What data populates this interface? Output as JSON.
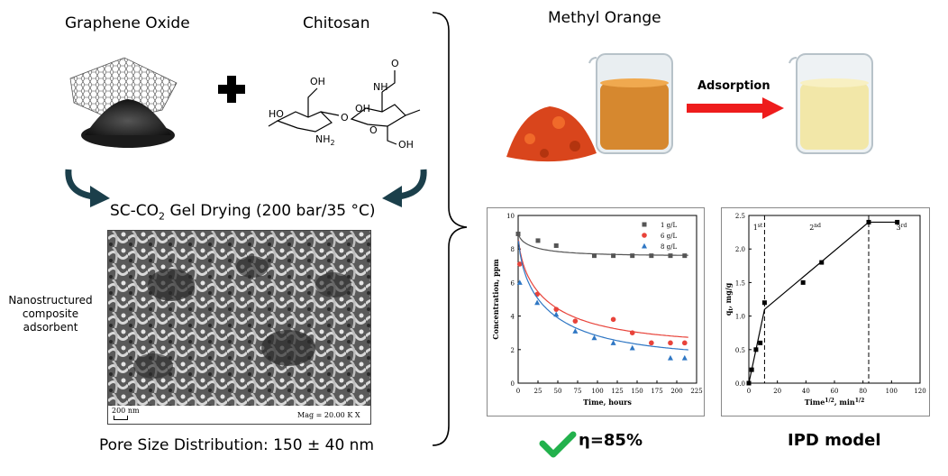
{
  "left": {
    "graphene_oxide_label": "Graphene Oxide",
    "chitosan_label": "Chitosan",
    "drying_label_prefix": "SC-CO",
    "drying_label_sub": "2",
    "drying_label_suffix": " Gel Drying (200 bar/35 °C)",
    "adsorbent_label": "Nanostructured composite adsorbent",
    "sem_scale_label": "200 nm",
    "sem_mag_label": "Mag =  20.00 K X",
    "pore_size_label": "Pore Size Distribution: 150 ± 40 nm",
    "chitosan_atoms": {
      "oh1": "OH",
      "ho": "HO",
      "nh2": "NH",
      "nh2_sub": "2",
      "oh2": "OH",
      "oh3": "OH",
      "nh": "NH",
      "o1": "O",
      "o2": "O",
      "o3": "O"
    }
  },
  "right": {
    "methyl_orange_label": "Methyl Orange",
    "adsorption_label": "Adsorption",
    "efficiency_label": "η=85%",
    "ipd_label": "IPD model"
  },
  "colors": {
    "arrow_red": "#ee1c1c",
    "check_green": "#22b14c",
    "arrow_teal": "#1b3f4b",
    "series_1": "#555555",
    "series_6": "#e8433a",
    "series_8": "#2f77c4"
  },
  "chart_data": [
    {
      "type": "scatter",
      "xlabel": "Time, hours",
      "ylabel": "Concentration, ppm",
      "xlim": [
        0,
        225
      ],
      "ylim": [
        0,
        10
      ],
      "x_ticks": [
        "0",
        "25",
        "50",
        "75",
        "100",
        "125",
        "150",
        "175",
        "200",
        "225"
      ],
      "y_ticks": [
        "0",
        "2",
        "4",
        "6",
        "8",
        "10"
      ],
      "legend": "top-right",
      "series": [
        {
          "name": "1 g/L",
          "marker": "square",
          "color": "#555555",
          "x": [
            0,
            25,
            48,
            96,
            120,
            144,
            168,
            192,
            210
          ],
          "y": [
            8.9,
            8.5,
            8.2,
            7.6,
            7.6,
            7.6,
            7.6,
            7.6,
            7.6
          ],
          "fit_asymptote": 7.6,
          "fit_start": 9.0
        },
        {
          "name": "6 g/L",
          "marker": "circle",
          "color": "#e8433a",
          "x": [
            2,
            24,
            48,
            72,
            120,
            144,
            168,
            192,
            210
          ],
          "y": [
            7.1,
            5.3,
            4.4,
            3.7,
            3.8,
            3.0,
            2.4,
            2.4,
            2.4
          ],
          "fit_asymptote": 2.3,
          "fit_start": 9.0
        },
        {
          "name": "8 g/L",
          "marker": "triangle",
          "color": "#2f77c4",
          "x": [
            2,
            24,
            48,
            72,
            96,
            120,
            144,
            192,
            210
          ],
          "y": [
            6.0,
            4.8,
            4.1,
            3.1,
            2.7,
            2.4,
            2.1,
            1.5,
            1.5
          ],
          "fit_asymptote": 1.5,
          "fit_start": 9.0
        }
      ]
    },
    {
      "type": "line",
      "xlabel": "Time",
      "xlabel_sup": "1/2",
      "xlabel_suffix": ", min",
      "ylabel": "q",
      "ylabel_sub": "t",
      "ylabel_suffix": ", mg/g",
      "xlim": [
        0,
        120
      ],
      "ylim": [
        0,
        2.5
      ],
      "x_ticks": [
        "0",
        "20",
        "40",
        "60",
        "80",
        "100",
        "120"
      ],
      "y_ticks": [
        "0.0",
        "0.5",
        "1.0",
        "1.5",
        "2.0",
        "2.5"
      ],
      "regions": [
        {
          "label": "1",
          "sup": "st"
        },
        {
          "label": "2",
          "sup": "nd"
        },
        {
          "label": "3",
          "sup": "rd"
        }
      ],
      "dividers_x": [
        11,
        84
      ],
      "points": {
        "x": [
          0,
          2,
          5,
          8,
          11,
          38,
          51,
          84,
          104
        ],
        "y": [
          0,
          0.2,
          0.5,
          0.6,
          1.2,
          1.5,
          1.8,
          2.4,
          2.4
        ]
      },
      "fit_segments": [
        {
          "x": [
            0,
            11
          ],
          "y": [
            0,
            1.1
          ]
        },
        {
          "x": [
            11,
            84
          ],
          "y": [
            1.1,
            2.4
          ]
        },
        {
          "x": [
            84,
            104
          ],
          "y": [
            2.4,
            2.4
          ]
        }
      ]
    }
  ]
}
